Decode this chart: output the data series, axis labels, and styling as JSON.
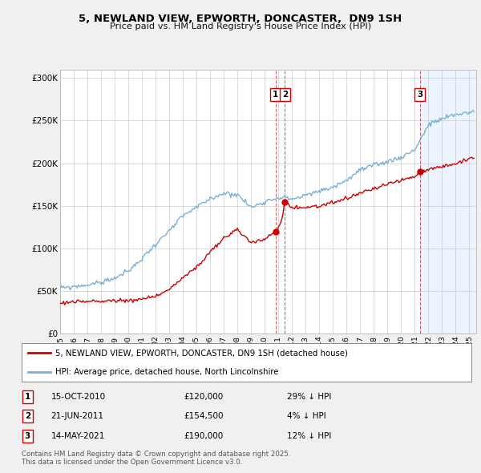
{
  "title_line1": "5, NEWLAND VIEW, EPWORTH, DONCASTER,  DN9 1SH",
  "title_line2": "Price paid vs. HM Land Registry's House Price Index (HPI)",
  "ylim": [
    0,
    310000
  ],
  "yticks": [
    0,
    50000,
    100000,
    150000,
    200000,
    250000,
    300000
  ],
  "ytick_labels": [
    "£0",
    "£50K",
    "£100K",
    "£150K",
    "£200K",
    "£250K",
    "£300K"
  ],
  "background_color": "#f0f0f0",
  "plot_background": "#ffffff",
  "transactions": [
    {
      "num": 1,
      "date": "15-OCT-2010",
      "price": 120000,
      "pct": "29%",
      "dir": "↓",
      "xval": 2010.79
    },
    {
      "num": 2,
      "date": "21-JUN-2011",
      "price": 154500,
      "pct": "4%",
      "dir": "↓",
      "xval": 2011.47
    },
    {
      "num": 3,
      "date": "14-MAY-2021",
      "price": 190000,
      "pct": "12%",
      "dir": "↓",
      "xval": 2021.37
    }
  ],
  "legend_red": "5, NEWLAND VIEW, EPWORTH, DONCASTER, DN9 1SH (detached house)",
  "legend_blue": "HPI: Average price, detached house, North Lincolnshire",
  "footer": "Contains HM Land Registry data © Crown copyright and database right 2025.\nThis data is licensed under the Open Government Licence v3.0.",
  "red_color": "#cc0000",
  "blue_color": "#7ab0d4",
  "marker_box_color": "#cc0000",
  "dashed_color": "#cc4444",
  "xmin": 1995,
  "xmax": 2025.5,
  "hpi_kx": [
    1995,
    1996,
    1997,
    1998,
    1999,
    2000,
    2001,
    2002,
    2003,
    2004,
    2005,
    2006,
    2007,
    2008,
    2009,
    2010,
    2011,
    2012,
    2013,
    2014,
    2015,
    2016,
    2017,
    2018,
    2019,
    2020,
    2021,
    2022,
    2023,
    2024,
    2025
  ],
  "hpi_ky": [
    53000,
    55000,
    57000,
    60000,
    65000,
    73000,
    88000,
    105000,
    120000,
    138000,
    148000,
    158000,
    165000,
    163000,
    148000,
    155000,
    160000,
    158000,
    162000,
    167000,
    172000,
    180000,
    192000,
    197000,
    202000,
    207000,
    216000,
    245000,
    252000,
    257000,
    260000
  ],
  "pp_kx": [
    1995,
    1996,
    1997,
    1998,
    1999,
    2000,
    2001,
    2002,
    2003,
    2004,
    2005,
    2006,
    2007,
    2008,
    2009,
    2010.0,
    2010.79,
    2011.2,
    2011.47,
    2012,
    2013,
    2014,
    2015,
    2016,
    2017,
    2018,
    2019,
    2020,
    2021.0,
    2021.37,
    2022,
    2023,
    2024,
    2025
  ],
  "pp_ky": [
    36000,
    37000,
    37500,
    38000,
    38500,
    39000,
    40000,
    44000,
    52000,
    65000,
    78000,
    95000,
    112000,
    122000,
    107000,
    110000,
    120000,
    130000,
    154500,
    148000,
    148000,
    150000,
    153000,
    158000,
    165000,
    170000,
    175000,
    180000,
    184000,
    190000,
    193000,
    196000,
    200000,
    205000
  ]
}
